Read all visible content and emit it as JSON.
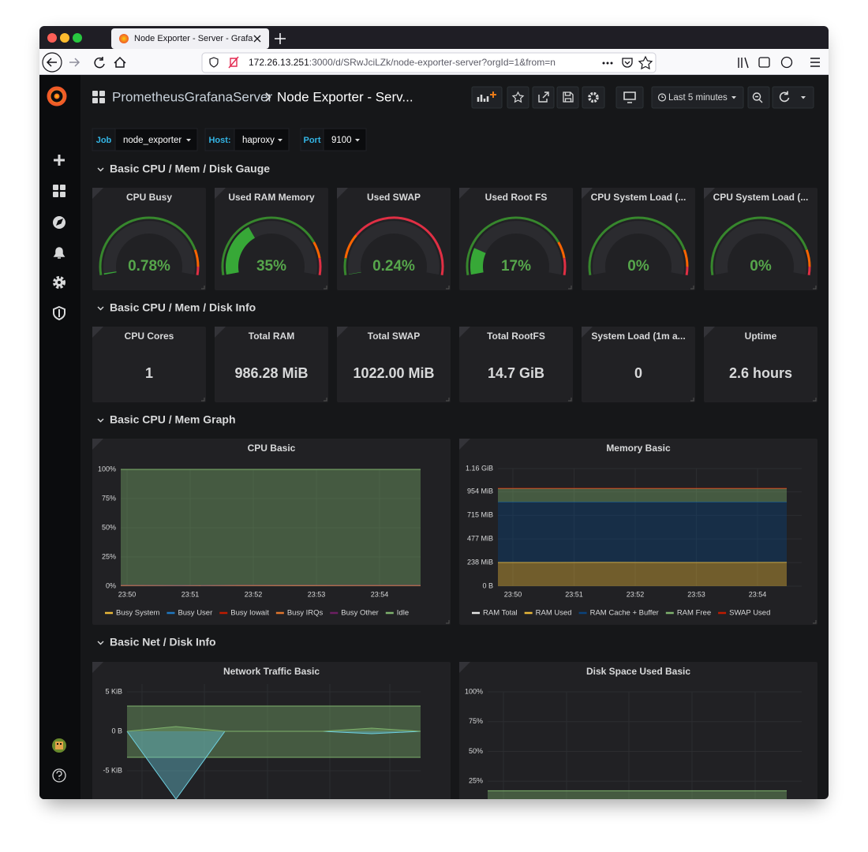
{
  "browser": {
    "tab_title": "Node Exporter - Server - Grafa",
    "url_host": "172.26.13.251",
    "url_path": ":3000/d/SRwJciLZk/node-exporter-server?orgId=1&from=n"
  },
  "header": {
    "folder": "PrometheusGrafanaServer",
    "dashboard": "Node Exporter - Serv...",
    "time_range": "Last 5 minutes"
  },
  "variables": [
    {
      "label": "Job",
      "value": "node_exporter"
    },
    {
      "label": "Host:",
      "value": "haproxy"
    },
    {
      "label": "Port",
      "value": "9100"
    }
  ],
  "rows": [
    "Basic CPU / Mem / Disk Gauge",
    "Basic CPU / Mem / Disk Info",
    "Basic CPU / Mem Graph",
    "Basic Net / Disk Info"
  ],
  "gauge_range": [
    0,
    100
  ],
  "gauges": [
    {
      "title": "CPU Busy",
      "value": 0.78,
      "value_label": "0.78%",
      "thresholds": [
        85,
        95
      ]
    },
    {
      "title": "Used RAM Memory",
      "value": 35,
      "value_label": "35%",
      "thresholds": [
        80,
        90
      ]
    },
    {
      "title": "Used SWAP",
      "value": 0.24,
      "value_label": "0.24%",
      "thresholds": [
        10,
        25
      ]
    },
    {
      "title": "Used Root FS",
      "value": 17,
      "value_label": "17%",
      "thresholds": [
        80,
        90
      ]
    },
    {
      "title": "CPU System Load (...",
      "value": 0,
      "value_label": "0%",
      "thresholds": [
        85,
        95
      ]
    },
    {
      "title": "CPU System Load (...",
      "value": 0,
      "value_label": "0%",
      "thresholds": [
        85,
        95
      ]
    }
  ],
  "stats": [
    {
      "title": "CPU Cores",
      "value": "1"
    },
    {
      "title": "Total RAM",
      "value": "986.28 MiB"
    },
    {
      "title": "Total SWAP",
      "value": "1022.00 MiB"
    },
    {
      "title": "Total RootFS",
      "value": "14.7 GiB"
    },
    {
      "title": "System Load (1m a...",
      "value": "0"
    },
    {
      "title": "Uptime",
      "value": "2.6 hours"
    }
  ],
  "graphs": [
    {
      "title": "CPU Basic",
      "stack": true,
      "ylim": [
        0,
        100
      ],
      "yticks": [
        {
          "value": 0,
          "label": "0%"
        },
        {
          "value": 25,
          "label": "25%"
        },
        {
          "value": 50,
          "label": "50%"
        },
        {
          "value": 75,
          "label": "75%"
        },
        {
          "value": 100,
          "label": "100%"
        }
      ],
      "xticks": [
        "23:50",
        "23:51",
        "23:52",
        "23:53",
        "23:54"
      ],
      "series": [
        {
          "name": "Busy System",
          "color": "#EAB839",
          "values": [
            0.4,
            0.3,
            0.4,
            0.3,
            0.4,
            0.4
          ]
        },
        {
          "name": "Busy User",
          "color": "#1F78C1",
          "values": [
            0.3,
            0.3,
            0.3,
            0.4,
            0.3,
            0.3
          ]
        },
        {
          "name": "Busy Iowait",
          "color": "#BF1B00",
          "values": [
            0.05,
            0.05,
            0.05,
            0.05,
            0.1,
            0.05
          ]
        },
        {
          "name": "Busy IRQs",
          "color": "#E0752D",
          "values": [
            0,
            0,
            0,
            0,
            0,
            0
          ]
        },
        {
          "name": "Busy Other",
          "color": "#6D1F62",
          "values": [
            0,
            0,
            0,
            0,
            0,
            0
          ]
        },
        {
          "name": "Idle",
          "color": "#7EB26D",
          "values": [
            99.25,
            99.35,
            99.25,
            99.25,
            99.2,
            99.25
          ]
        }
      ]
    },
    {
      "title": "Memory Basic",
      "stack": true,
      "ylim": [
        0,
        1188
      ],
      "yticks": [
        {
          "value": 0,
          "label": "0 B"
        },
        {
          "value": 238,
          "label": "238 MiB"
        },
        {
          "value": 477,
          "label": "477 MiB"
        },
        {
          "value": 715,
          "label": "715 MiB"
        },
        {
          "value": 954,
          "label": "954 MiB"
        },
        {
          "value": 1188,
          "label": "1.16 GiB"
        }
      ],
      "xticks": [
        "23:50",
        "23:51",
        "23:52",
        "23:53",
        "23:54"
      ],
      "series": [
        {
          "name": "RAM Total",
          "color": "#E5E5E5",
          "stack": false,
          "values": [
            986.28,
            986.28,
            986.28,
            986.28,
            986.28,
            986.28
          ]
        },
        {
          "name": "RAM Used",
          "color": "#EAB839",
          "values": [
            240,
            240,
            241,
            240,
            240,
            241
          ]
        },
        {
          "name": "RAM Cache + Buffer",
          "color": "#0A437C",
          "values": [
            610,
            610,
            609,
            610,
            610,
            609
          ]
        },
        {
          "name": "RAM Free",
          "color": "#7EB26D",
          "values": [
            136,
            136,
            136,
            136,
            136,
            136
          ]
        },
        {
          "name": "SWAP Used",
          "color": "#BF1B00",
          "values": [
            2.5,
            2.5,
            2.5,
            2.5,
            2.5,
            2.5
          ]
        }
      ]
    },
    {
      "title": "Network Traffic Basic",
      "stack": false,
      "ylim": [
        -10,
        6
      ],
      "yticks": [
        {
          "value": -5,
          "label": "-5 KiB"
        },
        {
          "value": 0,
          "label": "0 B"
        },
        {
          "value": 5,
          "label": "5 KiB"
        }
      ],
      "series": [
        {
          "color": "#7EB26D",
          "values": [
            3.2,
            3.2,
            3.2,
            3.2,
            3.2,
            3.2,
            3.2
          ]
        },
        {
          "color": "#7EB26D",
          "values": [
            -3.3,
            -3.3,
            -3.3,
            -3.3,
            -3.3,
            -3.3,
            -3.3
          ]
        },
        {
          "color": "#6ED0E0",
          "values": [
            0,
            -8.6,
            0,
            0,
            0,
            -0.3,
            0
          ]
        },
        {
          "color": "#7EB26D",
          "values": [
            0,
            0.6,
            0,
            0,
            0,
            0.4,
            0
          ]
        }
      ]
    },
    {
      "title": "Disk Space Used Basic",
      "stack": false,
      "ylim": [
        0,
        100
      ],
      "yticks": [
        {
          "value": 25,
          "label": "25%"
        },
        {
          "value": 50,
          "label": "50%"
        },
        {
          "value": 75,
          "label": "75%"
        },
        {
          "value": 100,
          "label": "100%"
        }
      ],
      "series": [
        {
          "color": "#7EB26D",
          "values": [
            17,
            17,
            17,
            17,
            17,
            17
          ]
        }
      ]
    }
  ]
}
